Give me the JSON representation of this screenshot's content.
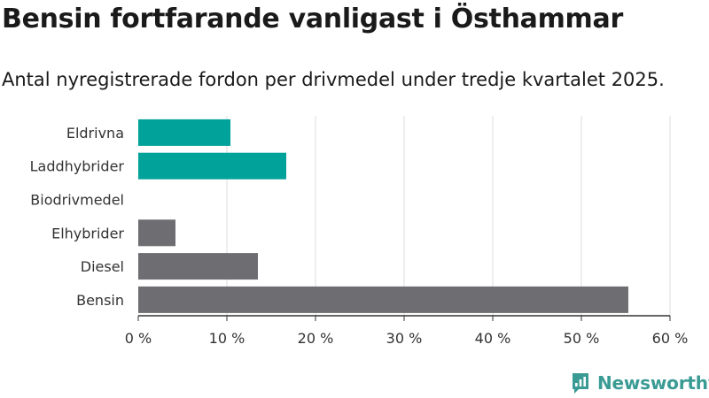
{
  "header": {
    "title": "Bensin fortfarande vanligast i Östhammar",
    "subtitle": "Antal nyregistrerade fordon per drivmedel under tredje kvartalet 2025."
  },
  "brand": {
    "name": "Newsworthy",
    "color": "#3a9b94"
  },
  "chart_data": {
    "type": "bar",
    "orientation": "horizontal",
    "categories": [
      "Eldrivna",
      "Laddhybrider",
      "Biodrivmedel",
      "Elhybrider",
      "Diesel",
      "Bensin"
    ],
    "values": [
      10.4,
      16.7,
      0,
      4.2,
      13.5,
      55.3
    ],
    "bar_colors": [
      "#00a29a",
      "#00a29a",
      "#00a29a",
      "#6e6d72",
      "#6e6d72",
      "#6e6d72"
    ],
    "xlim": [
      0,
      60
    ],
    "xticks": [
      0,
      10,
      20,
      30,
      40,
      50,
      60
    ],
    "xtick_labels": [
      "0 %",
      "10 %",
      "20 %",
      "30 %",
      "40 %",
      "50 %",
      "60 %"
    ],
    "grid": true,
    "xlabel": "",
    "ylabel": ""
  }
}
